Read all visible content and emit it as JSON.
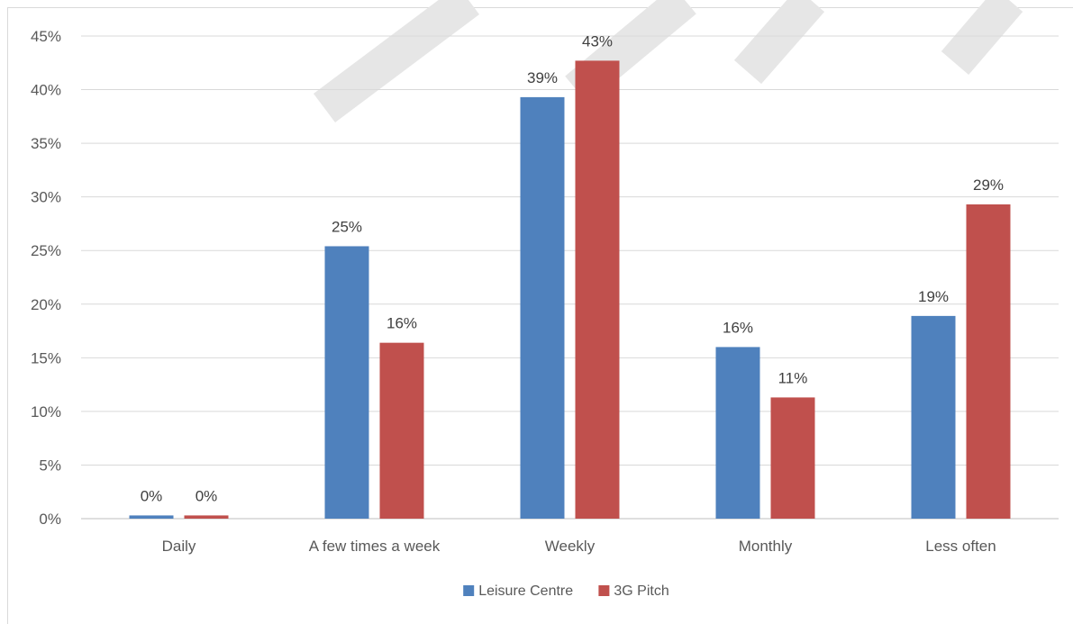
{
  "chart_data": {
    "type": "bar",
    "categories": [
      "Daily",
      "A few times a week",
      "Weekly",
      "Monthly",
      "Less often"
    ],
    "series": [
      {
        "name": "Leisure Centre",
        "color": "#4f81bd",
        "values": [
          0.3,
          25.4,
          39.3,
          16.0,
          18.9
        ],
        "labels": [
          "0%",
          "25%",
          "39%",
          "16%",
          "19%"
        ]
      },
      {
        "name": "3G Pitch",
        "color": "#c0504d",
        "values": [
          0.3,
          16.4,
          42.7,
          11.3,
          29.3
        ],
        "labels": [
          "0%",
          "16%",
          "43%",
          "11%",
          "29%"
        ]
      }
    ],
    "ylim": [
      0,
      45
    ],
    "yticks": [
      0,
      5,
      10,
      15,
      20,
      25,
      30,
      35,
      40,
      45
    ],
    "ytick_labels": [
      "0%",
      "5%",
      "10%",
      "15%",
      "20%",
      "25%",
      "30%",
      "35%",
      "40%",
      "45%"
    ],
    "grid": true,
    "legend_position": "bottom",
    "title": "",
    "xlabel": "",
    "ylabel": ""
  }
}
